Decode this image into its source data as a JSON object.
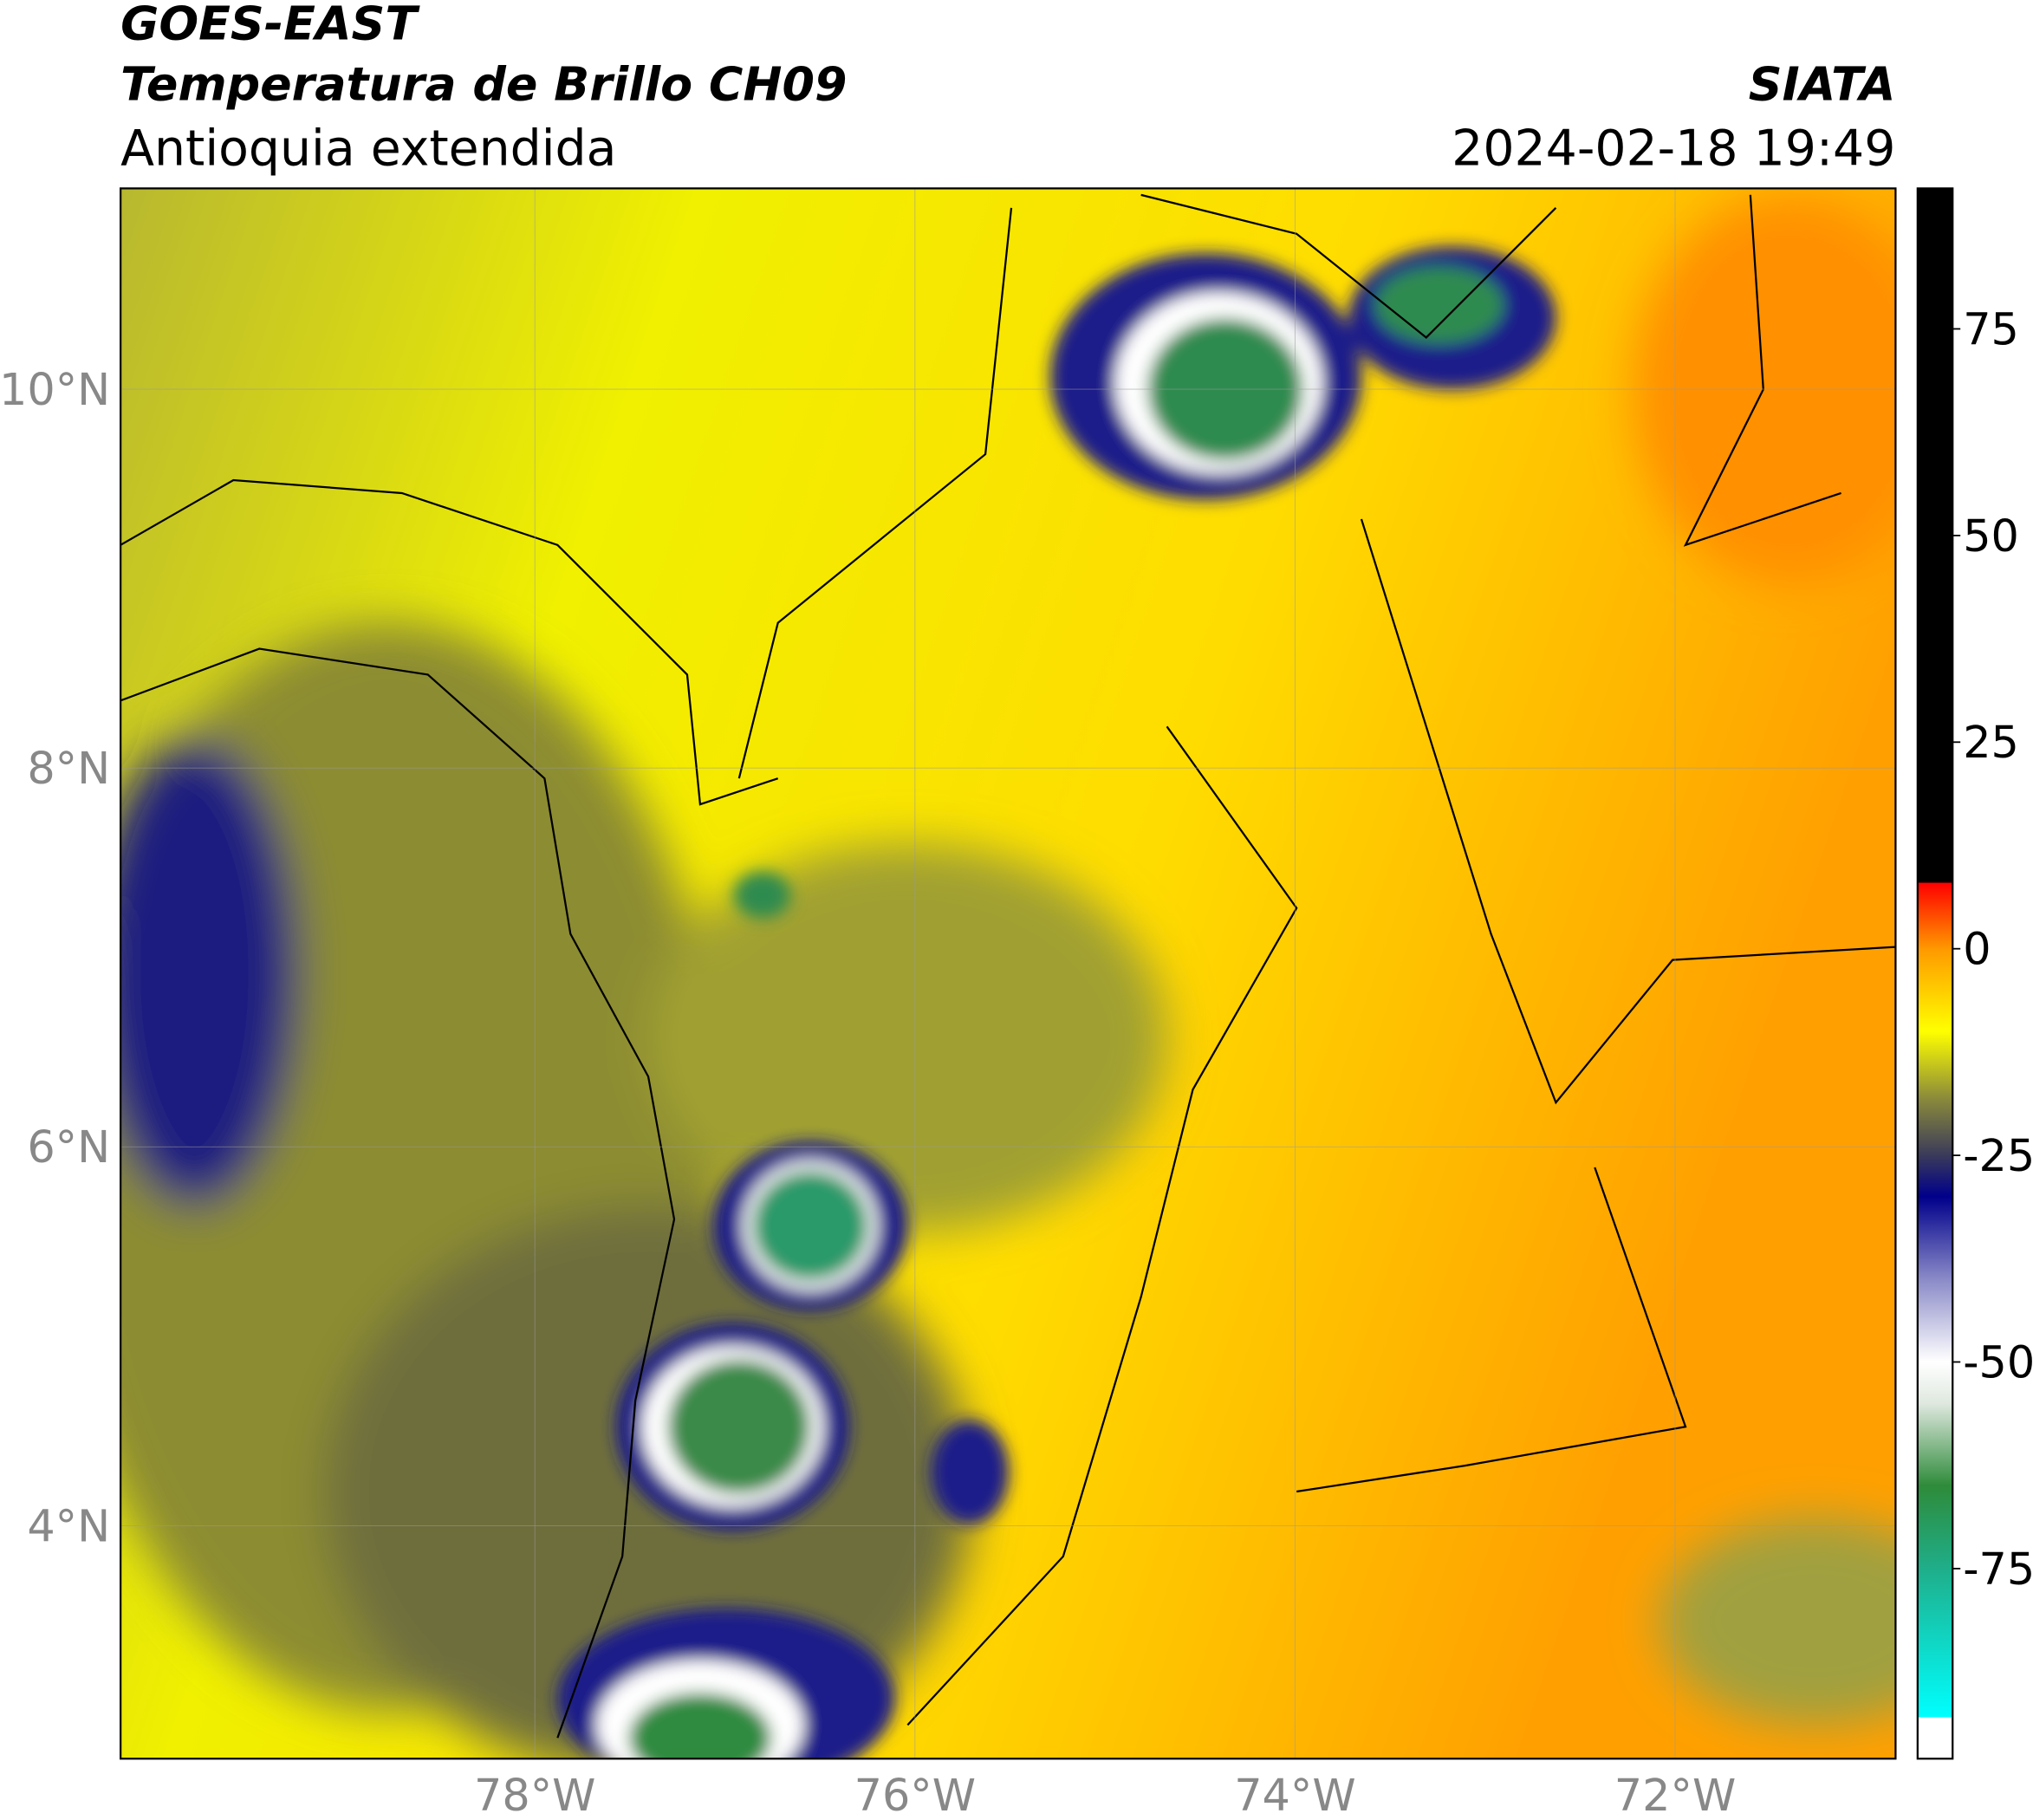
{
  "header": {
    "title": "GOES-EAST",
    "subtitle": "Temperatura de Brillo CH09",
    "region": "Antioquia extendida",
    "source": "SIATA",
    "datetime": "2024-02-18 19:49"
  },
  "map": {
    "xlim": [
      -80.18,
      -70.84
    ],
    "ylim": [
      2.77,
      11.06
    ],
    "xticks": [
      {
        "value": -78,
        "label": "78°W"
      },
      {
        "value": -76,
        "label": "76°W"
      },
      {
        "value": -74,
        "label": "74°W"
      },
      {
        "value": -72,
        "label": "72°W"
      }
    ],
    "yticks": [
      {
        "value": 4,
        "label": "4°N"
      },
      {
        "value": 6,
        "label": "6°N"
      },
      {
        "value": 8,
        "label": "8°N"
      },
      {
        "value": 10,
        "label": "10°N"
      }
    ],
    "grid": true
  },
  "colorbar": {
    "clim": [
      -98,
      92
    ],
    "ticks": [
      -75,
      -50,
      -25,
      0,
      25,
      50,
      75
    ],
    "colormap": [
      {
        "value": -98,
        "color": "#ffffff"
      },
      {
        "value": -93,
        "color": "#ffffff"
      },
      {
        "value": -93,
        "color": "#00ffff"
      },
      {
        "value": -75,
        "color": "#1fae8a"
      },
      {
        "value": -65,
        "color": "#2e8b3a"
      },
      {
        "value": -55,
        "color": "#dfe8df"
      },
      {
        "value": -50,
        "color": "#ffffff"
      },
      {
        "value": -40,
        "color": "#8a8ac8"
      },
      {
        "value": -30,
        "color": "#00008b"
      },
      {
        "value": -25,
        "color": "#3a3a5a"
      },
      {
        "value": -18,
        "color": "#8c8c3a"
      },
      {
        "value": -10,
        "color": "#ffff00"
      },
      {
        "value": 0,
        "color": "#ff9900"
      },
      {
        "value": 8,
        "color": "#ff0000"
      },
      {
        "value": 8,
        "color": "#000000"
      },
      {
        "value": 92,
        "color": "#000000"
      }
    ]
  }
}
